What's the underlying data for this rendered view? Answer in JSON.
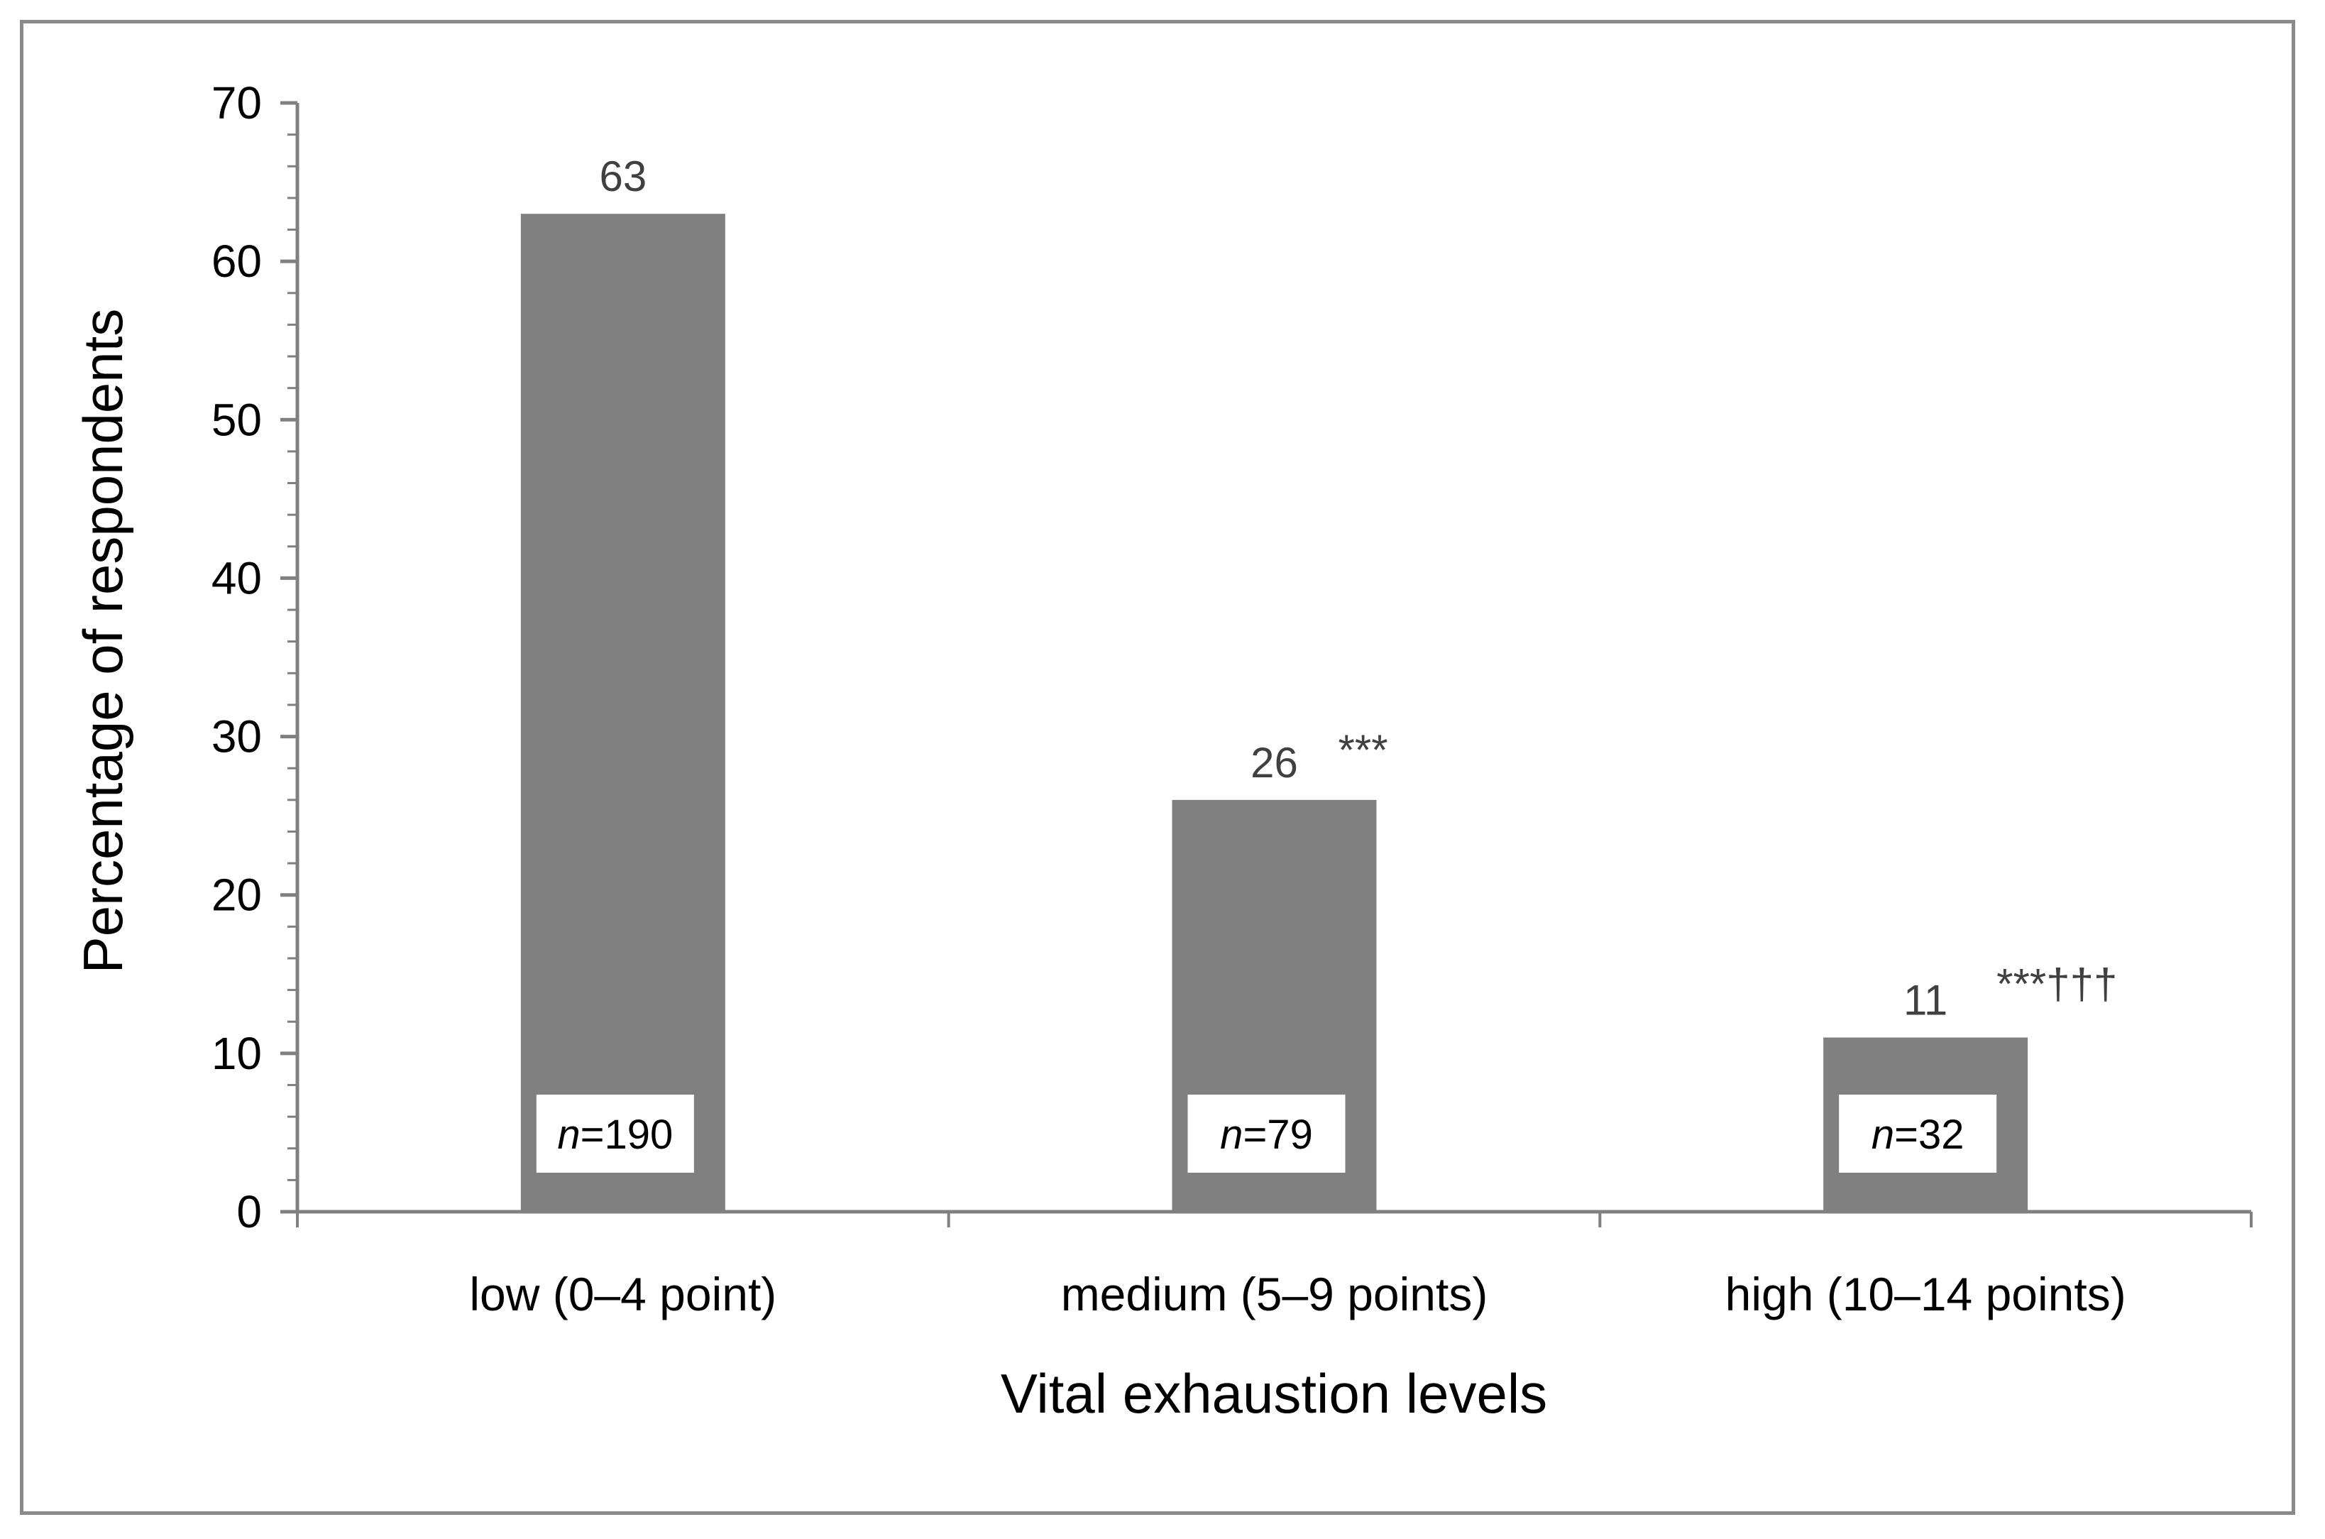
{
  "chart_data": {
    "type": "bar",
    "title": "",
    "xlabel": "Vital exhaustion levels",
    "ylabel": "Percentage of respondents",
    "ylim": [
      0,
      70
    ],
    "yticks": [
      "0",
      "10",
      "20",
      "30",
      "40",
      "50",
      "60",
      "70"
    ],
    "grid": false,
    "categories": [
      "low (0–4 point)",
      "medium (5–9 points)",
      "high (10–14 points)"
    ],
    "values": [
      63,
      26,
      11
    ],
    "value_labels": [
      "63",
      "26",
      "11"
    ],
    "significance": [
      "",
      "***",
      "***†††"
    ],
    "n_prefix": [
      "n",
      "n",
      "n"
    ],
    "n_values": [
      "=190",
      "=79",
      "=32"
    ],
    "colors": {
      "bar": "#808080",
      "axis": "#808080",
      "frame": "#8a8a8a"
    }
  }
}
